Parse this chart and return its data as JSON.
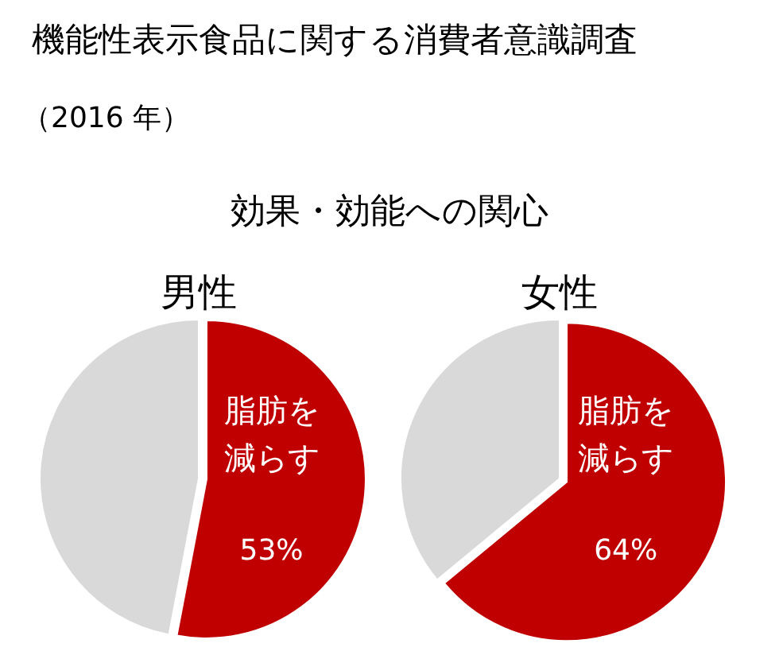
{
  "chart_data": [
    {
      "type": "other",
      "title": "機能性表示食品に関する消費者意識調査",
      "subtitle": "（2016 年）",
      "annotations": [
        "効果・効能への関心"
      ]
    },
    {
      "type": "pie",
      "title": "男性",
      "categories": [
        "脂肪を減らす",
        null
      ],
      "values": [
        53,
        47
      ],
      "colors": [
        "#c00000",
        "#d9d9d9"
      ],
      "value_labels": [
        "53%",
        null
      ]
    },
    {
      "type": "pie",
      "title": "女性",
      "categories": [
        "脂肪を減らす",
        null
      ],
      "values": [
        64,
        36
      ],
      "colors": [
        "#c00000",
        "#d9d9d9"
      ],
      "value_labels": [
        "64%",
        null
      ]
    }
  ]
}
